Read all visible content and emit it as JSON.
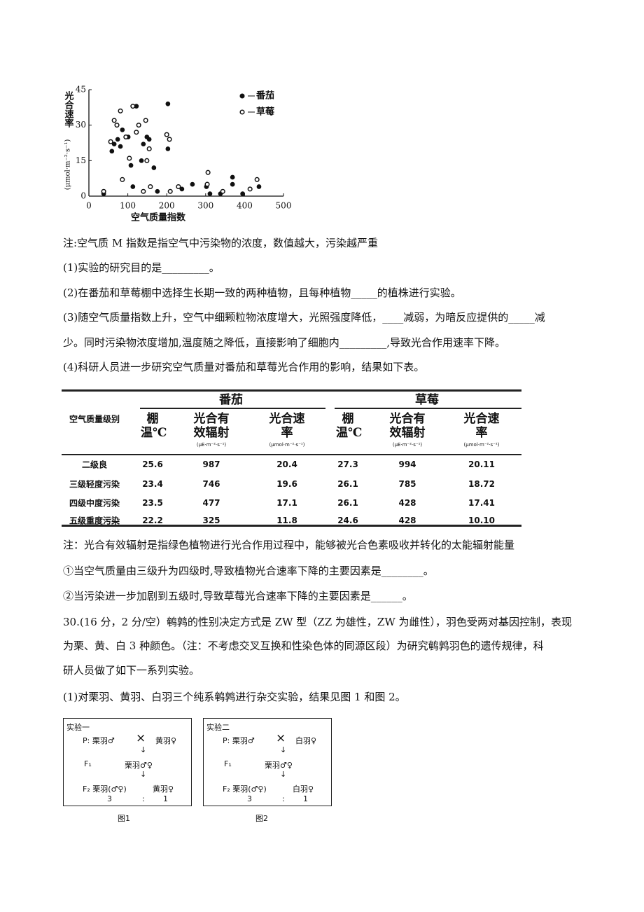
{
  "chart_data": {
    "type": "scatter",
    "y_label": "光合速率",
    "y_unit": "(μmol·m⁻²·s⁻¹)",
    "x_label": "空气质量指数",
    "xlim": [
      0,
      500
    ],
    "xticks": [
      0,
      100,
      200,
      300,
      400,
      500
    ],
    "ylim": [
      0,
      45
    ],
    "yticks": [
      0,
      15,
      30,
      45
    ],
    "legend": "upper right",
    "series": [
      {
        "name": "番茄",
        "marker": "filled",
        "color": "#111111",
        "x": [
          38,
          59,
          65,
          74,
          81,
          86,
          101,
          108,
          113,
          122,
          135,
          140,
          149,
          155,
          167,
          176,
          203,
          203,
          239,
          266,
          302,
          311,
          338,
          369,
          369,
          395,
          437
        ],
        "values": [
          1,
          19,
          22,
          24,
          21,
          28,
          25,
          13,
          4,
          38,
          15,
          22,
          25,
          24,
          12,
          2,
          39,
          20,
          3,
          5,
          4,
          1,
          1,
          8,
          5,
          1,
          4
        ]
      },
      {
        "name": "草莓",
        "marker": "open",
        "color": "#111111",
        "x": [
          38,
          56,
          65,
          72,
          81,
          86,
          95,
          104,
          113,
          122,
          128,
          140,
          146,
          149,
          155,
          158,
          200,
          207,
          209,
          230,
          304,
          306,
          344,
          414,
          432
        ],
        "values": [
          2,
          23,
          32,
          30,
          36,
          7,
          25,
          16,
          38,
          27,
          30,
          2,
          32,
          15,
          20,
          4,
          26,
          24,
          2,
          4,
          5,
          10,
          2,
          3,
          7
        ]
      }
    ]
  },
  "text": {
    "note1": "注:空气质 M 指数是指空气中污染物的浓度，数值越大，污染越严重",
    "q1": "(1)实验的研究目的是_________。",
    "q2": "(2)在番茄和草莓棚中选择生长期一致的两种植物，且每种植物_____的植株进行实验。",
    "q3a": "(3)随空气质量指数上升，空气中细颗粒物浓度增大，光照强度降低，____减弱，为暗反应提供的_____减",
    "q3b": "少。同时污染物浓度增加,温度随之降低，直接影响了细胞内_________,导致光合作用速率下降。",
    "q4": "(4)科研人员进一步研究空气质量对番茄和草莓光合作用的影响，结果如下表。",
    "note2": "注：光合有效辐射是指绿色植物进行光合作用过程中，能够被光合色素吸收并转化的太能辐射能量",
    "s1": "①当空气质量由三级升为四级时,导致植物光合速率下降的主要因素是________。",
    "s2": "②当污染进一步加剧到五级时,导致草莓光合速率下降的主要因素是______。",
    "p30a": "30.(16 分，2 分/空）鹌鹑的性别决定方式是 ZW 型（ZZ 为雄性，ZW 为雌性），羽色受两对基因控制，表现",
    "p30b": "为栗、黄、白 3 种颜色。（注：不考虑交叉互换和性染色体的同源区段）为研究鹌鹑羽色的遗传规律，科",
    "p30c": "研人员做了如下一系列实验。",
    "p30d": "(1)对栗羽、黄羽、白羽三个纯系鹌鹑进行杂交实验，结果见图 1 和图 2。"
  },
  "table": {
    "row_header": "空气质量级别",
    "groups": [
      "番茄",
      "草莓"
    ],
    "columns": [
      {
        "name": "棚温℃"
      },
      {
        "name": "光合有效辐射",
        "unit": "(μE·m⁻²·s⁻¹)"
      },
      {
        "name": "光合速率",
        "unit": "(μmol·m⁻²·s⁻¹)"
      },
      {
        "name": "棚温℃"
      },
      {
        "name": "光合有效辐射",
        "unit": "(μE·m⁻²·s⁻¹)"
      },
      {
        "name": "光合速率",
        "unit": "(μmol·m⁻²·s⁻¹)"
      }
    ],
    "rows": [
      [
        "二级良",
        "25.6",
        "987",
        "20.4",
        "27.3",
        "994",
        "20.11"
      ],
      [
        "三级轻度污染",
        "23.4",
        "746",
        "19.6",
        "26.1",
        "785",
        "18.72"
      ],
      [
        "四级中度污染",
        "23.5",
        "477",
        "17.1",
        "26.1",
        "428",
        "17.41"
      ],
      [
        "五级重度污染",
        "22.2",
        "325",
        "11.8",
        "24.6",
        "428",
        "10.10"
      ]
    ]
  },
  "figures": [
    {
      "title": "实验一",
      "p": "P: 栗羽♂",
      "cross": "×",
      "p2": "黄羽♀",
      "f1": "F₁",
      "f1_text": "栗羽♂♀",
      "f2": "F₂ 栗羽(♂♀)",
      "f2b": "黄羽♀",
      "ratio": [
        "3",
        ":",
        "1"
      ],
      "caption": "图1"
    },
    {
      "title": "实验二",
      "p": "P: 栗羽♂",
      "cross": "×",
      "p2": "白羽♀",
      "f1": "F₁",
      "f1_text": "栗羽♂♀",
      "f2": "F₂ 栗羽(♂♀)",
      "f2b": "白羽♀",
      "ratio": [
        "3",
        ":",
        "1"
      ],
      "caption": "图2"
    }
  ]
}
